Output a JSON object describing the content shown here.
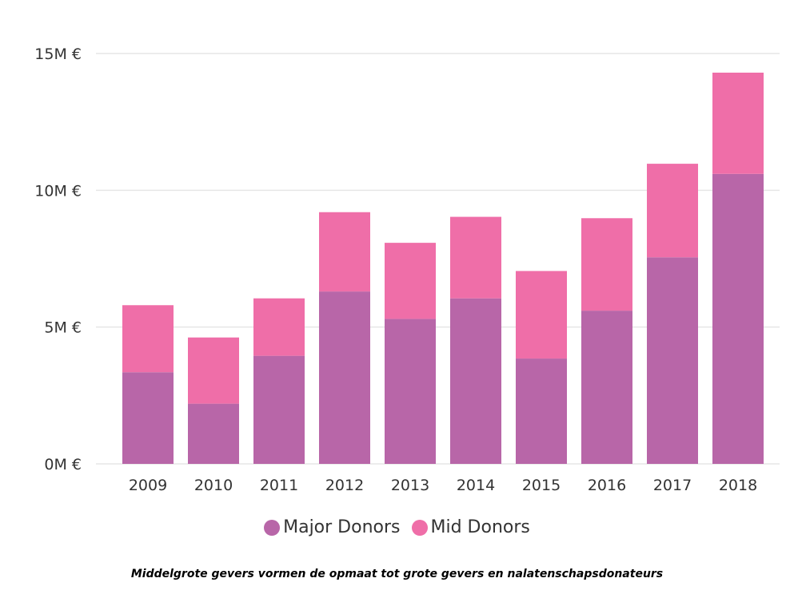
{
  "caption": "Middelgrote gevers vormen de opmaat tot grote gevers en nalatenschapsdonateurs",
  "colors": {
    "major": "#b866a8",
    "mid": "#ef6ea8",
    "grid": "#e6e6e6",
    "text": "#333333"
  },
  "chart_data": {
    "type": "bar",
    "stacked": true,
    "categories": [
      "2009",
      "2010",
      "2011",
      "2012",
      "2013",
      "2014",
      "2015",
      "2016",
      "2017",
      "2018"
    ],
    "series": [
      {
        "name": "Major Donors",
        "values": [
          3.35,
          2.2,
          3.95,
          6.3,
          5.3,
          6.05,
          3.85,
          5.6,
          7.55,
          10.6
        ]
      },
      {
        "name": "Mid Donors",
        "values": [
          2.45,
          2.42,
          2.1,
          2.9,
          2.78,
          2.98,
          3.2,
          3.38,
          3.42,
          3.7
        ]
      }
    ],
    "ylim": [
      0,
      15
    ],
    "yticks": [
      0,
      5,
      10,
      15
    ],
    "ytick_labels": [
      "0M €",
      "5M €",
      "10M €",
      "15M €"
    ],
    "grid": true,
    "legend": "bottom-center"
  }
}
